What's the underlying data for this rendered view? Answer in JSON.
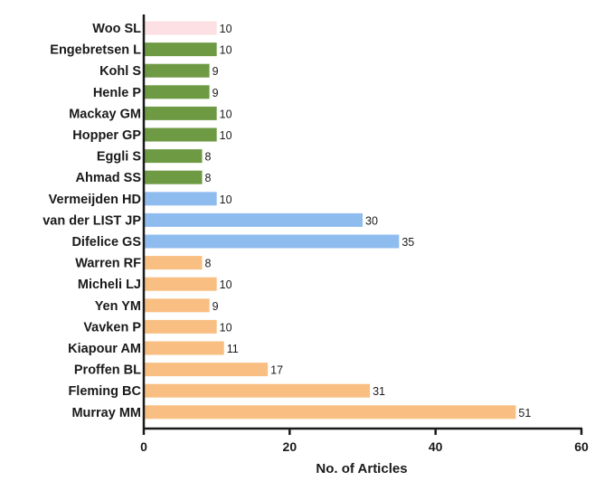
{
  "chart_data": {
    "type": "bar",
    "orientation": "horizontal",
    "title": "",
    "xlabel": "No. of Articles",
    "ylabel": "",
    "xlim": [
      0,
      60
    ],
    "x_ticks": [
      0,
      20,
      40,
      60
    ],
    "grid": false,
    "legend": "none",
    "data_labels": true,
    "categories": [
      "Woo SL",
      "Engebretsen L",
      "Kohl S",
      "Henle P",
      "Mackay GM",
      "Hopper GP",
      "Eggli S",
      "Ahmad SS",
      "Vermeijden HD",
      "van der LIST JP",
      "Difelice GS",
      "Warren RF",
      "Micheli LJ",
      "Yen YM",
      "Vavken P",
      "Kiapour AM",
      "Proffen BL",
      "Fleming BC",
      "Murray MM"
    ],
    "values": [
      10,
      10,
      9,
      9,
      10,
      10,
      8,
      8,
      10,
      30,
      35,
      8,
      10,
      9,
      10,
      11,
      17,
      31,
      51
    ],
    "bar_colors": [
      "#fde0e4",
      "#6f9a44",
      "#6f9a44",
      "#6f9a44",
      "#6f9a44",
      "#6f9a44",
      "#6f9a44",
      "#6f9a44",
      "#8fbcee",
      "#8fbcee",
      "#8fbcee",
      "#f8be82",
      "#f8be82",
      "#f8be82",
      "#f8be82",
      "#f8be82",
      "#f8be82",
      "#f8be82",
      "#f8be82"
    ],
    "axis_color": "#1a1a1a"
  }
}
